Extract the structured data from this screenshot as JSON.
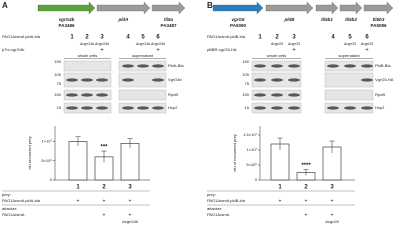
{
  "panels": [
    {
      "letter": "A",
      "genes": [
        {
          "name": "vgrG4b",
          "locus": "PA3486",
          "color": "#5aa23a"
        },
        {
          "name": "pldA",
          "color": "#9a9a9a"
        },
        {
          "name": "tli5a",
          "locus": "PA3487",
          "color": "#9a9a9a"
        }
      ],
      "strain": "PAO1ΔrsmA pldA-bla",
      "lanes": [
        "1",
        "2",
        "3",
        "4",
        "5",
        "6"
      ],
      "genotypes": [
        "ΔvgrG4b",
        "ΔvgrG4b",
        "ΔvgrG4b",
        "ΔvgrG4b"
      ],
      "plasmid": "pTrc-vgrG4b",
      "plasmid_marks": [
        "+",
        "+"
      ],
      "fractions": [
        "whole cells",
        "supernatant"
      ],
      "markers": [
        "150",
        "100",
        "75",
        "150",
        "15"
      ],
      "proteins": [
        {
          "name": "PldA-Bla",
          "color": "#4aa05a"
        },
        {
          "name": "VgrG4b",
          "color": "#4aa05a"
        },
        {
          "name": "RpoB",
          "color": "#222222"
        },
        {
          "name": "Hcp2",
          "color": "#222222"
        }
      ],
      "chart": {
        "type": "bar",
        "categories": [
          "1",
          "2",
          "3"
        ],
        "values": [
          10000000,
          6000000,
          9500000
        ],
        "errors": [
          1200000,
          1500000,
          1200000
        ],
        "ylim": [
          0,
          14000000
        ],
        "yticks": [
          0,
          {
            "value": 5000000,
            "label": "5×10⁶"
          },
          {
            "value": 10000000,
            "label": "1×10⁷"
          }
        ],
        "ylabel": "cfu recovered prey",
        "annotation": "***",
        "color": "#ffffff"
      },
      "prey_label": "prey:",
      "prey": "PAO1ΔrsmA pldA-bla",
      "prey_marks": [
        "+",
        "+",
        "+"
      ],
      "attacker_label": "attacker:",
      "attacker": "PAO1ΔrsmA",
      "attacker_marks": [
        "+",
        "+"
      ],
      "attacker_deletion": "ΔvgrG4b"
    },
    {
      "letter": "B",
      "genes": [
        {
          "name": "vgrG5",
          "locus": "PA5090",
          "color": "#2a7fc0"
        },
        {
          "name": "pldB",
          "color": "#9a9a9a"
        },
        {
          "name": "tli5b1",
          "color": "#9a9a9a"
        },
        {
          "name": "tli5b2",
          "color": "#9a9a9a"
        },
        {
          "name": "tli5b3",
          "locus": "PA5086",
          "color": "#9a9a9a"
        }
      ],
      "strain": "PAO1ΔrsmA pldB-bla",
      "lanes": [
        "1",
        "2",
        "3",
        "4",
        "5",
        "6"
      ],
      "genotypes": [
        "ΔvgrG5",
        "ΔvgrG5",
        "ΔvgrG5",
        "ΔvgrG5"
      ],
      "plasmid": "pBBR-vgrG5-HA",
      "plasmid_marks": [
        "+",
        "+"
      ],
      "fractions": [
        "whole cells",
        "supernatant"
      ],
      "markers": [
        "150",
        "100",
        "75",
        "150",
        "15"
      ],
      "proteins": [
        {
          "name": "PldB-Bla",
          "color": "#2a7fc0"
        },
        {
          "name": "VgrG5-HA",
          "color": "#2a7fc0"
        },
        {
          "name": "RpoB",
          "color": "#222222"
        },
        {
          "name": "Hcp2",
          "color": "#222222"
        }
      ],
      "chart": {
        "type": "bar",
        "categories": [
          "1",
          "2",
          "3"
        ],
        "values": [
          12000000,
          2500000,
          11000000
        ],
        "errors": [
          2000000,
          1000000,
          2000000
        ],
        "ylim": [
          0,
          18000000
        ],
        "yticks": [
          0,
          {
            "value": 5000000,
            "label": "5×10⁶"
          },
          {
            "value": 10000000,
            "label": "1×10⁷"
          },
          {
            "value": 15000000,
            "label": "1.5×10⁷"
          }
        ],
        "ylabel": "cfu of recovered prey",
        "annotation": "****",
        "color": "#ffffff"
      },
      "prey_label": "prey:",
      "prey": "PAO1ΔrsmA pldB-bla",
      "prey_marks": [
        "+",
        "+",
        "+"
      ],
      "attacker_label": "attacker:",
      "attacker": "PAO1ΔrsmA",
      "attacker_marks": [
        "+",
        "+"
      ],
      "attacker_deletion": "ΔvgrG5"
    }
  ]
}
